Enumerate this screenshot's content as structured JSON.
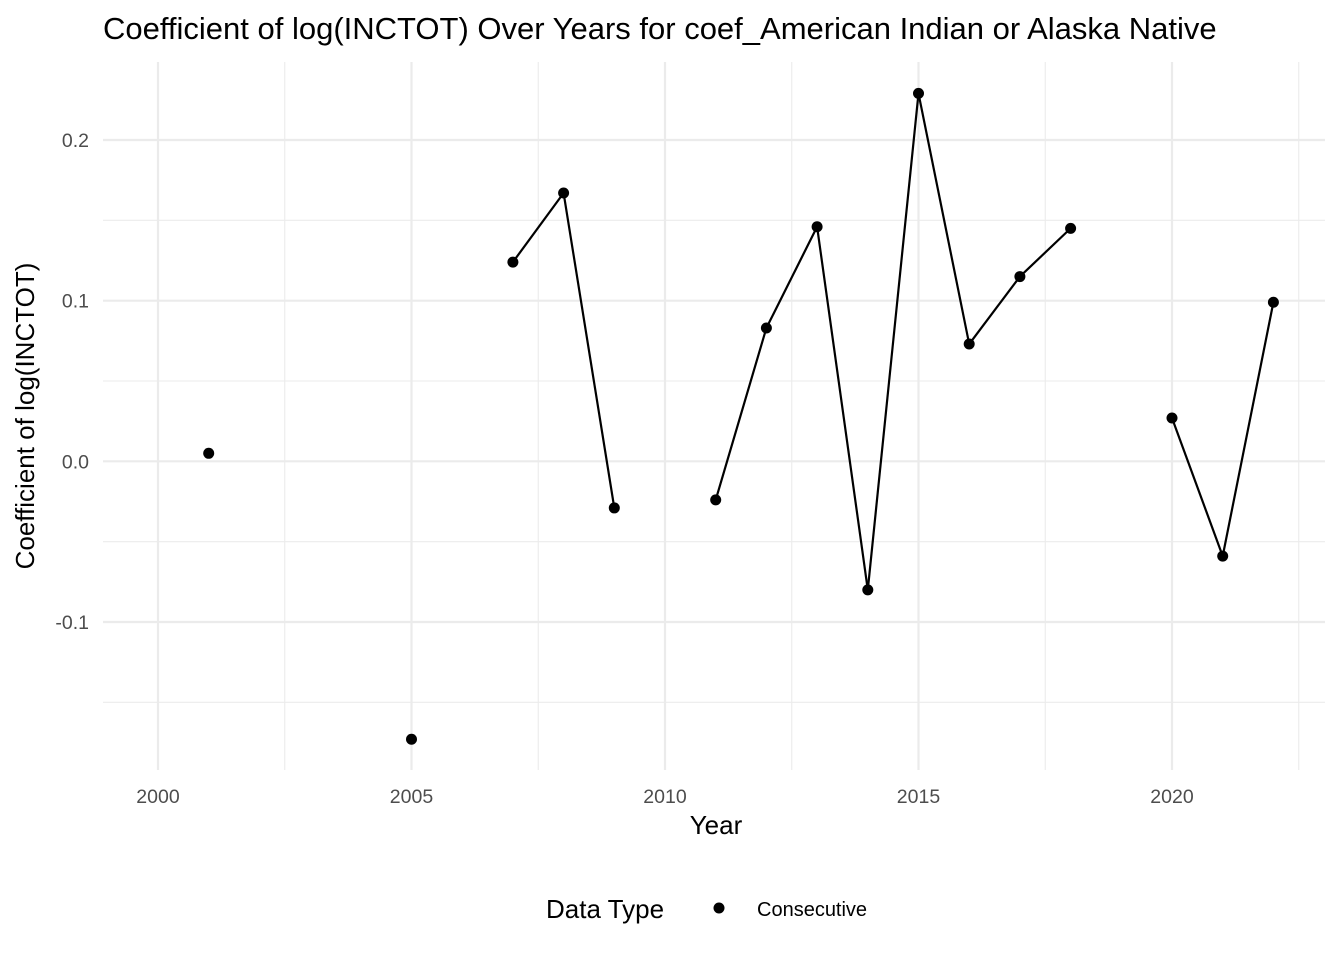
{
  "chart_data": {
    "type": "line",
    "title": "Coefficient of log(INCTOT) Over Years for coef_American Indian or Alaska Native",
    "xlabel": "Year",
    "ylabel": "Coefficient of log(INCTOT)",
    "xlim": [
      1999,
      2023
    ],
    "ylim": [
      -0.19,
      0.245
    ],
    "x_ticks": [
      2000,
      2005,
      2010,
      2015,
      2020
    ],
    "x_tick_labels": [
      "2000",
      "2005",
      "2010",
      "2015",
      "2020"
    ],
    "x_minor_ticks": [
      2002.5,
      2007.5,
      2012.5,
      2017.5,
      2022.5
    ],
    "y_ticks": [
      -0.1,
      0.0,
      0.1,
      0.2
    ],
    "y_tick_labels": [
      "-0.1",
      "0.0",
      "0.1",
      "0.2"
    ],
    "y_minor_ticks": [
      -0.15,
      -0.05,
      0.05,
      0.15
    ],
    "grid": true,
    "legend": {
      "title": "Data Type",
      "position": "bottom",
      "entries": [
        "Consecutive"
      ]
    },
    "colors": {
      "series": "#000000",
      "grid": "#ebebeb",
      "background": "#ffffff"
    },
    "series": [
      {
        "name": "Consecutive",
        "points": [
          {
            "x": 2001,
            "y": 0.005
          },
          {
            "x": 2005,
            "y": -0.173
          },
          {
            "x": 2007,
            "y": 0.124
          },
          {
            "x": 2008,
            "y": 0.167
          },
          {
            "x": 2009,
            "y": -0.029
          },
          {
            "x": 2011,
            "y": -0.024
          },
          {
            "x": 2012,
            "y": 0.083
          },
          {
            "x": 2013,
            "y": 0.146
          },
          {
            "x": 2014,
            "y": -0.08
          },
          {
            "x": 2015,
            "y": 0.229
          },
          {
            "x": 2016,
            "y": 0.073
          },
          {
            "x": 2017,
            "y": 0.115
          },
          {
            "x": 2018,
            "y": 0.145
          },
          {
            "x": 2020,
            "y": 0.027
          },
          {
            "x": 2021,
            "y": -0.059
          },
          {
            "x": 2022,
            "y": 0.099
          }
        ]
      }
    ]
  }
}
